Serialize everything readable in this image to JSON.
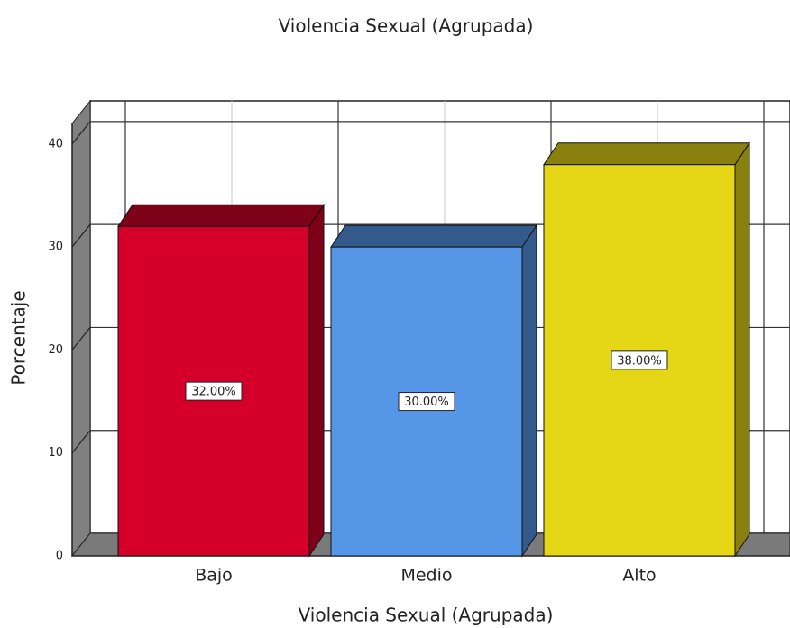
{
  "chart_data": {
    "type": "bar3d",
    "title": "Violencia Sexual (Agrupada)",
    "xlabel": "Violencia Sexual (Agrupada)",
    "ylabel": "Porcentaje",
    "categories": [
      "Bajo",
      "Medio",
      "Alto"
    ],
    "values": [
      32,
      30,
      38
    ],
    "value_labels": [
      "32.00%",
      "30.00%",
      "38.00%"
    ],
    "colors": [
      "#d4002a",
      "#5596e6",
      "#e5d616"
    ],
    "ylim": [
      0,
      42
    ],
    "yticks": [
      0,
      10,
      20,
      30,
      40
    ],
    "grid": true
  }
}
